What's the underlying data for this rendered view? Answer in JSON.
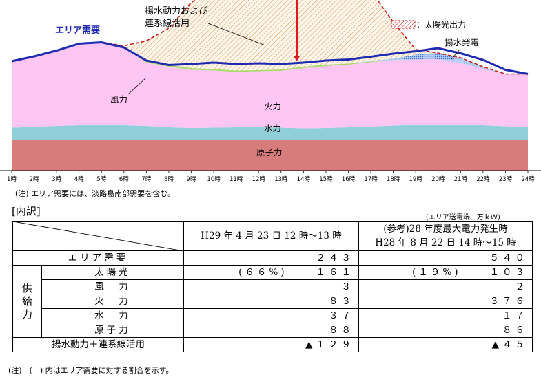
{
  "chart_data": {
    "type": "area",
    "x": [
      "1時",
      "2時",
      "3時",
      "4時",
      "5時",
      "6時",
      "7時",
      "8時",
      "9時",
      "10時",
      "11時",
      "12時",
      "13時",
      "14時",
      "15時",
      "16時",
      "17時",
      "18時",
      "19時",
      "20時",
      "21時",
      "22時",
      "23時",
      "24時"
    ],
    "series": [
      {
        "name": "原子力",
        "values": [
          88,
          88,
          88,
          88,
          88,
          88,
          88,
          88,
          88,
          88,
          88,
          88,
          88,
          88,
          88,
          88,
          88,
          88,
          88,
          88,
          88,
          88,
          88,
          88
        ]
      },
      {
        "name": "水力",
        "values": [
          37,
          39,
          42,
          44,
          45,
          44,
          42,
          38,
          36,
          37,
          38,
          39,
          37,
          35,
          36,
          38,
          40,
          43,
          45,
          46,
          45,
          44,
          41,
          38
        ]
      },
      {
        "name": "火力",
        "values": [
          193,
          205,
          219,
          237,
          240,
          226,
          184,
          176,
          169,
          166,
          161,
          162,
          165,
          175,
          180,
          182,
          187,
          190,
          190,
          190,
          180,
          164,
          152,
          155
        ]
      },
      {
        "name": "風力",
        "values": [
          0,
          0,
          0,
          0,
          0,
          0,
          6,
          5,
          5,
          4,
          4,
          3,
          4,
          4,
          4,
          3,
          2,
          0,
          0,
          0,
          0,
          0,
          0,
          0
        ]
      },
      {
        "name": "揚水発電",
        "values": [
          0,
          0,
          0,
          0,
          0,
          0,
          0,
          0,
          0,
          0,
          0,
          0,
          0,
          0,
          0,
          0,
          2,
          4,
          14,
          18,
          15,
          6,
          0,
          0
        ]
      },
      {
        "name": "エリア需要",
        "values": [
          318,
          332,
          349,
          369,
          373,
          358,
          320,
          307,
          310,
          314,
          310,
          312,
          310,
          314,
          320,
          323,
          331,
          340,
          347,
          356,
          341,
          322,
          293,
          281
        ]
      },
      {
        "name": "太陽光出力",
        "values": [
          0,
          0,
          0,
          0,
          0,
          5,
          57,
          107,
          191,
          232,
          280,
          301,
          313,
          306,
          292,
          253,
          204,
          107,
          15,
          0,
          0,
          0,
          0,
          0
        ]
      }
    ],
    "labels": {
      "area_demand": "エリア需要",
      "solar_legend": "：太陽光出力",
      "pumped": "揚水発電",
      "wind": "風力",
      "thermal": "火力",
      "hydro": "水力",
      "nuclear": "原子力",
      "pumping_line1": "揚水動力および",
      "pumping_line2": "連系線活用"
    },
    "colors": {
      "nuclear": "#d87b7b",
      "hydro": "#8ecfda",
      "thermal": "#ffc6f4",
      "wind": "#a8d96a",
      "pumped": "#5b8fe0",
      "demand": "#1e2ab0",
      "solar": "#d11c1c",
      "arrow": "#e0181c"
    }
  },
  "notes": {
    "note1": "(注) エリア需要には、淡路島南部需要を含む。",
    "note2": "(注)　(　) 内はエリア需要に対する割合を示す。"
  },
  "breakdown": {
    "title": "[内訳]",
    "unit": "(エリア送電端、万ｋＷ)",
    "col1": "H29 年 4 月 23 日 12 時～13 時",
    "col2_line1": "(参考)28 年度最大電力発生時",
    "col2_line2": "H28 年 8 月 22 日 14 時～15 時",
    "area_demand_label": "エリア需要",
    "area_demand": [
      "２４３",
      "５４０"
    ],
    "supply_label": [
      "供",
      "給",
      "力"
    ],
    "rows": [
      {
        "label": "太陽光",
        "c1_pct": "(６６%)",
        "c1": "１６１",
        "c2_pct": "(１９%)",
        "c2": "１０３"
      },
      {
        "label": "風　力",
        "c1": "３",
        "c2": "２"
      },
      {
        "label": "火　力",
        "c1": "８３",
        "c2": "３７６"
      },
      {
        "label": "水　力",
        "c1": "３７",
        "c2": "１７"
      },
      {
        "label": "原子力",
        "c1": "８８",
        "c2": "８６"
      }
    ],
    "pumping_label": "揚水動力＋連系線活用",
    "pumping": [
      "▲１２９",
      "▲４５"
    ]
  }
}
